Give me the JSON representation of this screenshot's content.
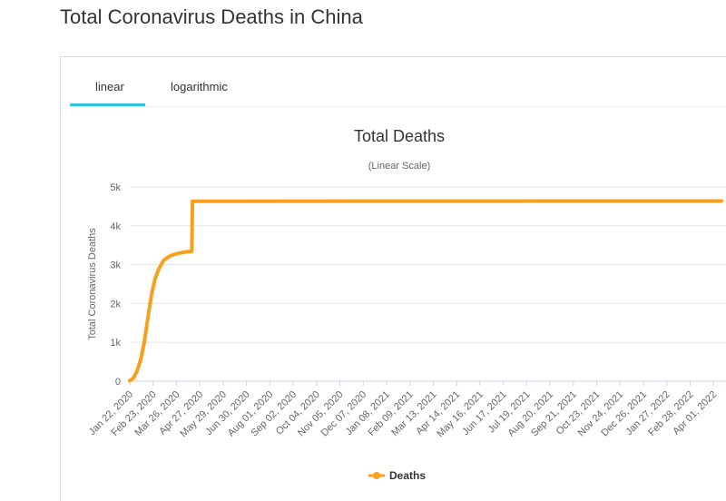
{
  "page": {
    "title": "Total Coronavirus Deaths in China"
  },
  "tabs": [
    {
      "label": "linear",
      "active": true
    },
    {
      "label": "logarithmic",
      "active": false
    }
  ],
  "colors": {
    "series": "#f7a01d",
    "tab_active": "#2ec4e8",
    "grid": "#e6e6e6",
    "text": "#666666"
  },
  "chart_data": {
    "type": "line",
    "title": "Total Deaths",
    "subtitle": "(Linear Scale)",
    "ylabel": "Total Coronavirus Deaths",
    "xlabel": "",
    "ylim": [
      0,
      5000
    ],
    "y_ticks": [
      0,
      1000,
      2000,
      3000,
      4000,
      5000
    ],
    "y_tick_labels": [
      "0",
      "1k",
      "2k",
      "3k",
      "4k",
      "5k"
    ],
    "x_range": [
      "2020-01-22",
      "2022-04-12"
    ],
    "x_tick_labels": [
      "Jan 22, 2020",
      "Feb 23, 2020",
      "Mar 26, 2020",
      "Apr 27, 2020",
      "May 29, 2020",
      "Jun 30, 2020",
      "Aug 01, 2020",
      "Sep 02, 2020",
      "Oct 04, 2020",
      "Nov 05, 2020",
      "Dec 07, 2020",
      "Jan 08, 2021",
      "Feb 09, 2021",
      "Mar 13, 2021",
      "Apr 14, 2021",
      "May 16, 2021",
      "Jun 17, 2021",
      "Jul 19, 2021",
      "Aug 20, 2021",
      "Sep 21, 2021",
      "Oct 23, 2021",
      "Nov 24, 2021",
      "Dec 26, 2021",
      "Jan 27, 2022",
      "Feb 28, 2022",
      "Apr 01, 2022"
    ],
    "grid": true,
    "legend_position": "bottom-center",
    "series": [
      {
        "name": "Deaths",
        "x": [
          "2020-01-22",
          "2020-01-27",
          "2020-02-01",
          "2020-02-06",
          "2020-02-11",
          "2020-02-16",
          "2020-02-21",
          "2020-02-26",
          "2020-03-02",
          "2020-03-08",
          "2020-03-15",
          "2020-03-22",
          "2020-03-30",
          "2020-04-08",
          "2020-04-16",
          "2020-04-17",
          "2020-05-15",
          "2022-04-01",
          "2022-04-12"
        ],
        "values": [
          17,
          80,
          260,
          560,
          1020,
          1660,
          2240,
          2660,
          2900,
          3100,
          3200,
          3260,
          3300,
          3330,
          3340,
          4632,
          4633,
          4638,
          4638
        ]
      }
    ]
  }
}
